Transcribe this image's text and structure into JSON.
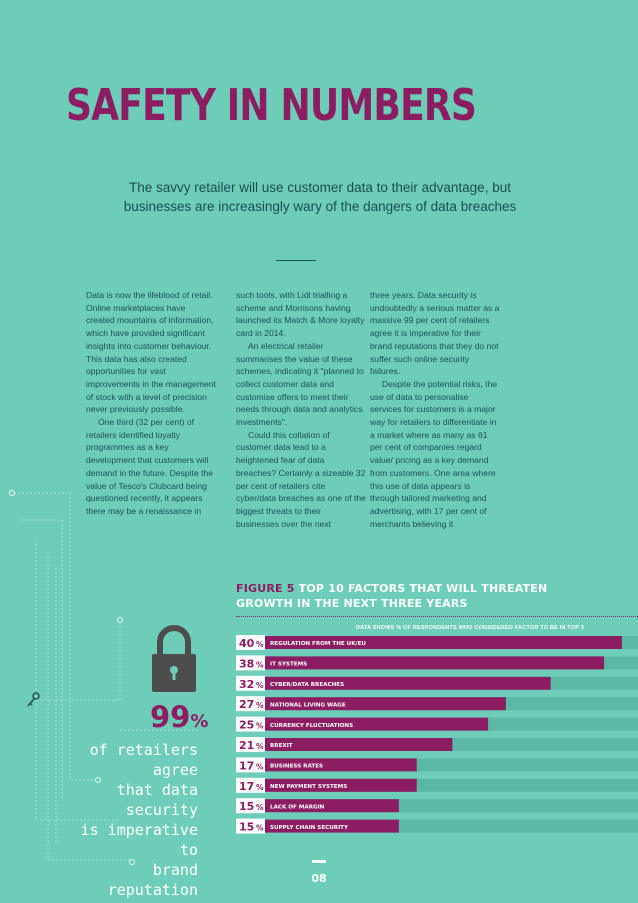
{
  "title": "SAFETY IN NUMBERS",
  "subtitle": "The savvy retailer will use customer data to their advantage, but businesses are increasingly wary of the dangers of data breaches",
  "body_columns": [
    [
      "Data is now the lifeblood of retail. Online marketplaces have created mountains of information, which have provided significant insights into customer behaviour. This data has also created opportunities for vast improvements in the management of stock with a level of precision never previously possible.",
      "One third (32 per cent) of retailers identified loyalty programmes as a key development that customers will demand in the future. Despite the value of Tesco's Clubcard being questioned recently, it appears there may be a renaissance in"
    ],
    [
      "such tools, with Lidl trialling a scheme and Morrisons having launched its Match & More loyalty card in 2014.",
      "An electrical retailer summarises the value of these schemes, indicating it \"planned to collect customer data and customise offers to meet their needs through data and analytics investments\".",
      "Could this collation of customer data lead to a heightened fear of data breaches? Certainly a sizeable 32 per cent of retailers cite cyber/data breaches as one of the biggest threats to their businesses over the next"
    ],
    [
      "three years. Data security is undoubtedly a serious matter as a massive 99 per cent of retailers agree it is imperative for their brand reputations that they do not suffer such online security failures.",
      "Despite the potential risks, the use of data to personalise services for customers is a major way for retailers to differentiate in a market where as many as 61 per cent of companies regard value/ pricing as a key demand from customers. One area where this use of data appears is through tailored marketing and advertising, with 17 per cent of merchants believing it"
    ]
  ],
  "figure": {
    "label": "FIGURE 5",
    "title_line1": "TOP 10 FACTORS THAT WILL THREATEN",
    "title_line2": "GROWTH IN THE NEXT THREE YEARS",
    "note": "DATA SHOWS % OF RESPONDENTS WHO CONSIDERED FACTOR TO BE IN TOP 3"
  },
  "chart_data": {
    "type": "bar",
    "orientation": "horizontal",
    "title": "TOP 10 FACTORS THAT WILL THREATEN GROWTH IN THE NEXT THREE YEARS",
    "value_suffix": "%",
    "categories": [
      "REGULATION FROM THE UK/EU",
      "IT SYSTEMS",
      "CYBER/DATA BREACHES",
      "NATIONAL LIVING WAGE",
      "CURRENCY FLUCTUATIONS",
      "BREXIT",
      "BUSINESS RATES",
      "NEW PAYMENT SYSTEMS",
      "LACK OF MARGIN",
      "SUPPLY CHAIN SECURITY"
    ],
    "values": [
      40,
      38,
      32,
      27,
      25,
      21,
      17,
      17,
      15,
      15
    ],
    "value_labels": [
      "40",
      "38",
      "32",
      "27",
      "25",
      "21",
      "17",
      "17",
      "15",
      "15"
    ],
    "xlim": [
      0,
      41.8
    ],
    "colors": {
      "bar": "#8c1d63",
      "track": "#5bb8a4",
      "label_bg": "#ffffff"
    }
  },
  "stat": {
    "value": "99",
    "suffix": "%",
    "caption_lines": [
      "of retailers agree",
      "that data security",
      "is imperative to",
      "brand reputation"
    ]
  },
  "page_number": "08",
  "colors": {
    "background": "#6dcdb8",
    "accent": "#8c1d63",
    "text": "#1d4f55"
  }
}
